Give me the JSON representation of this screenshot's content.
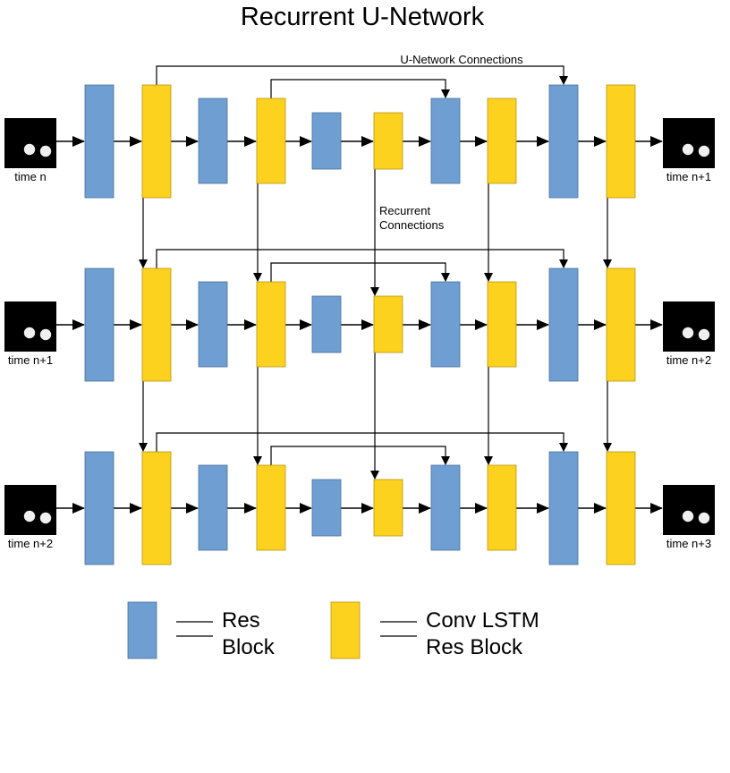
{
  "title": "Recurrent U-Network",
  "annotations": {
    "unet_connections": "U-Network Connections",
    "recurrent_connections_line1": "Recurrent",
    "recurrent_connections_line2": "Connections"
  },
  "colors": {
    "res_block": "#6f9fd2",
    "conv_lstm_res_block": "#fdd21f",
    "frame_background": "#000000",
    "frame_ball": "#f0f0f0"
  },
  "rows": [
    {
      "input_label": "time n",
      "output_label": "time n+1"
    },
    {
      "input_label": "time n+1",
      "output_label": "time n+2"
    },
    {
      "input_label": "time n+2",
      "output_label": "time n+3"
    }
  ],
  "block_sequence": [
    "res",
    "lstm",
    "res",
    "lstm",
    "res",
    "lstm",
    "res",
    "lstm",
    "res",
    "lstm"
  ],
  "legend": {
    "res_line1": "Res",
    "res_line2": "Block",
    "lstm_line1": "Conv LSTM",
    "lstm_line2": "Res Block"
  }
}
